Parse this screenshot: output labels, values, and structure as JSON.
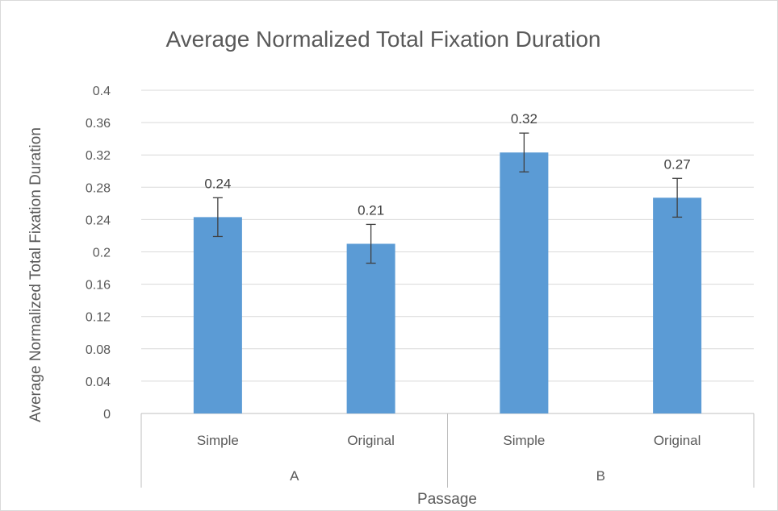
{
  "chart_data": {
    "type": "bar",
    "title": "Average Normalized Total Fixation Duration",
    "xlabel": "Passage",
    "ylabel": "Average Normalized Total Fixation Duration",
    "ylim": [
      0,
      0.4
    ],
    "yticks": [
      "0",
      "0.04",
      "0.08",
      "0.12",
      "0.16",
      "0.2",
      "0.24",
      "0.28",
      "0.32",
      "0.36",
      "0.4"
    ],
    "grid": true,
    "legend": "none",
    "groups": [
      {
        "label": "A",
        "categories": [
          "Simple",
          "Original"
        ]
      },
      {
        "label": "B",
        "categories": [
          "Simple",
          "Original"
        ]
      }
    ],
    "categories": [
      "Simple",
      "Original",
      "Simple",
      "Original"
    ],
    "values": [
      0.243,
      0.21,
      0.323,
      0.267
    ],
    "data_labels": [
      "0.24",
      "0.21",
      "0.32",
      "0.27"
    ],
    "error": [
      0.024,
      0.024,
      0.024,
      0.024
    ],
    "bar_color": "#5b9bd5"
  }
}
